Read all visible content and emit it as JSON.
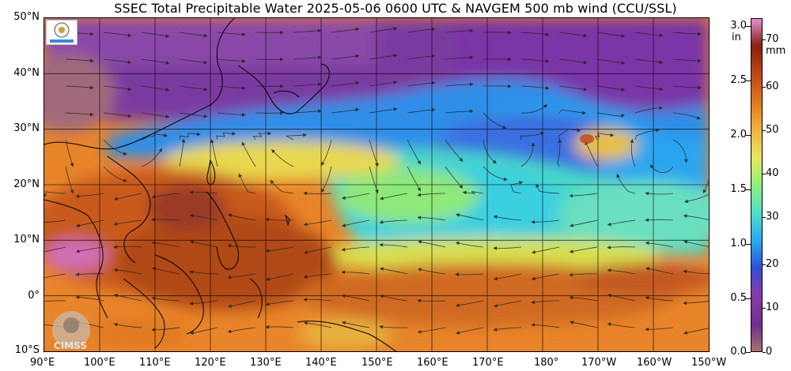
{
  "title": {
    "product": "SSEC Total Precipitable Water",
    "datetime": "2025-05-06 0600 UTC",
    "overlay": "& NAVGEM 500 mb wind (CCU/SSL)"
  },
  "map": {
    "lat_labels": [
      "50°N",
      "40°N",
      "30°N",
      "20°N",
      "10°N",
      "0°",
      "10°S"
    ],
    "lon_labels": [
      "90°E",
      "100°E",
      "110°E",
      "120°E",
      "130°E",
      "140°E",
      "150°E",
      "160°E",
      "170°E",
      "180°",
      "170°W",
      "160°W",
      "150°W"
    ],
    "lat_range": [
      -10,
      50
    ],
    "lon_range_east": [
      90,
      210
    ]
  },
  "colorbar": {
    "inch_unit": "in",
    "mm_unit": "mm",
    "inch_ticks": [
      "3.0",
      "2.5",
      "2.0",
      "1.5",
      "1.0",
      "0.5",
      "0.0"
    ],
    "mm_ticks": [
      "70",
      "60",
      "50",
      "40",
      "30",
      "20",
      "10",
      "0"
    ],
    "colors": [
      "#a87070",
      "#6e2f8e",
      "#8a3aa8",
      "#3050d8",
      "#2aa6f0",
      "#50e0c8",
      "#8ef07a",
      "#e8e860",
      "#f0b040",
      "#e07820",
      "#c04818",
      "#8a2010",
      "#e090d0"
    ]
  },
  "logos": {
    "ssec": "SSEC logo",
    "cimss": "CIMSS"
  }
}
